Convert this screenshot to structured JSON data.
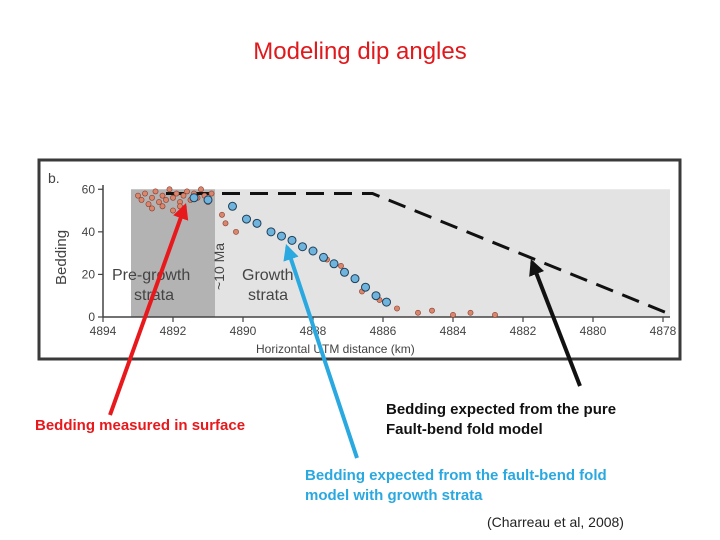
{
  "slide": {
    "title": "Modeling dip angles"
  },
  "annotations": {
    "surface": "Bedding measured in surface",
    "pure_line1": "Bedding expected from the pure",
    "pure_line2": "Fault-bend fold model",
    "growth_line1": "Bedding expected from the fault-bend fold",
    "growth_line2": "model with growth strata",
    "citation": "(Charreau et al, 2008)"
  },
  "colors": {
    "surface_arrow": "#e8191c",
    "growth_arrow": "#2aa8e0",
    "pure_arrow": "#111111",
    "pregrowth_zone": "#b3b3b3",
    "growth_zone": "#e3e3e3",
    "measured_points": "#d9866e",
    "growth_points": "#6fb4dd"
  },
  "chart_data": {
    "type": "scatter",
    "panel_label": "b.",
    "ylabel": "Bedding",
    "xlabel": "Horizontal UTM distance (km)",
    "xlim": [
      4894,
      4877.8
    ],
    "ylim": [
      0,
      62
    ],
    "x_ticks": [
      4894,
      4892,
      4890,
      4888,
      4886,
      4884,
      4882,
      4880,
      4878
    ],
    "y_ticks": [
      0,
      20,
      40,
      60
    ],
    "zones": [
      {
        "label_line1": "Pre-growth",
        "label_line1_text": "Pre-growth",
        "label_line2": "strata",
        "x_from": 4893.2,
        "x_to": 4890.8,
        "rotated_label": "~10 Ma"
      },
      {
        "label_line1": "Growth",
        "label_line2": "strata",
        "x_from": 4890.8,
        "x_to": 4877.8
      }
    ],
    "series": [
      {
        "kind": "measured",
        "points": [
          [
            4893.0,
            57
          ],
          [
            4892.9,
            55
          ],
          [
            4892.8,
            58
          ],
          [
            4892.7,
            53
          ],
          [
            4892.6,
            56
          ],
          [
            4892.5,
            59
          ],
          [
            4892.4,
            54
          ],
          [
            4892.3,
            57
          ],
          [
            4892.2,
            55
          ],
          [
            4892.1,
            60
          ],
          [
            4892.0,
            56
          ],
          [
            4891.9,
            58
          ],
          [
            4891.8,
            54
          ],
          [
            4891.7,
            57
          ],
          [
            4891.6,
            59
          ],
          [
            4891.5,
            55
          ],
          [
            4891.4,
            58
          ],
          [
            4891.3,
            56
          ],
          [
            4891.2,
            60
          ],
          [
            4891.1,
            57
          ],
          [
            4891.0,
            54
          ],
          [
            4890.9,
            58
          ],
          [
            4892.6,
            51
          ],
          [
            4892.3,
            52
          ],
          [
            4892.0,
            50
          ],
          [
            4891.8,
            52
          ],
          [
            4890.6,
            48
          ],
          [
            4890.5,
            44
          ],
          [
            4890.2,
            40
          ],
          [
            4887.6,
            27
          ],
          [
            4887.2,
            24
          ],
          [
            4886.6,
            12
          ],
          [
            4886.1,
            8
          ],
          [
            4885.6,
            4
          ],
          [
            4885.0,
            2
          ],
          [
            4884.6,
            3
          ],
          [
            4884.0,
            1
          ],
          [
            4883.5,
            2
          ],
          [
            4882.8,
            1
          ]
        ]
      },
      {
        "kind": "growth_model",
        "points": [
          [
            4891.4,
            56
          ],
          [
            4891.0,
            55
          ],
          [
            4890.3,
            52
          ],
          [
            4889.9,
            46
          ],
          [
            4889.6,
            44
          ],
          [
            4889.2,
            40
          ],
          [
            4888.9,
            38
          ],
          [
            4888.6,
            36
          ],
          [
            4888.3,
            33
          ],
          [
            4888.0,
            31
          ],
          [
            4887.7,
            28
          ],
          [
            4887.4,
            25
          ],
          [
            4887.1,
            21
          ],
          [
            4886.8,
            18
          ],
          [
            4886.5,
            14
          ],
          [
            4886.2,
            10
          ],
          [
            4885.9,
            7
          ]
        ]
      },
      {
        "kind": "pure_model",
        "points": [
          [
            4892.2,
            58
          ],
          [
            4886.3,
            58
          ],
          [
            4877.9,
            2
          ]
        ]
      }
    ]
  }
}
